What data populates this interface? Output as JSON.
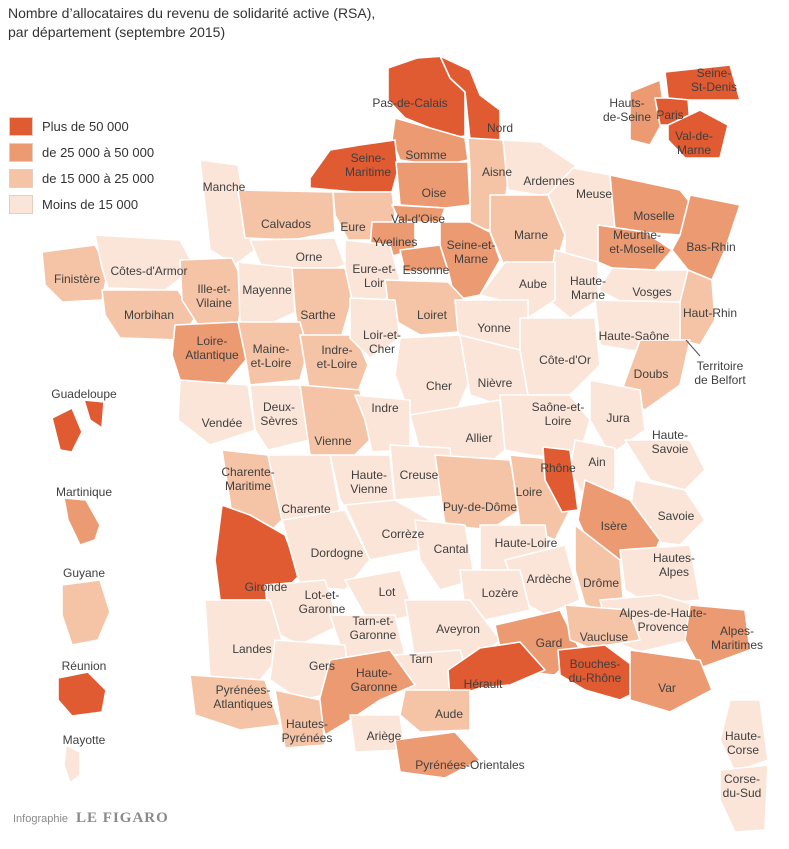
{
  "title": {
    "line1": "Nombre d’allocataires du revenu de solidarité active (RSA),",
    "line2": "par département (septembre 2015)"
  },
  "colors": {
    "over_50000": "#e05a32",
    "from_25000_to_50000": "#ec9a72",
    "from_15000_to_25000": "#f5c4a6",
    "under_15000": "#fbe5d8"
  },
  "legend": [
    {
      "label": "Plus de 50 000",
      "class": "over_50000"
    },
    {
      "label": "de 25 000 à 50 000",
      "class": "from_25000_to_50000"
    },
    {
      "label": "de 15 000 à 25 000",
      "class": "from_15000_to_25000"
    },
    {
      "label": "Moins de 15 000",
      "class": "under_15000"
    }
  ],
  "overseas": [
    {
      "name": "Guadeloupe",
      "class": "over_50000"
    },
    {
      "name": "Martinique",
      "class": "from_25000_to_50000"
    },
    {
      "name": "Guyane",
      "class": "from_15000_to_25000"
    },
    {
      "name": "Réunion",
      "class": "over_50000"
    },
    {
      "name": "Mayotte",
      "class": "under_15000"
    }
  ],
  "departments": [
    {
      "name": "Pas-de-Calais",
      "class": "over_50000"
    },
    {
      "name": "Nord",
      "class": "over_50000"
    },
    {
      "name": "Seine-Maritime",
      "class": "over_50000"
    },
    {
      "name": "Somme",
      "class": "from_25000_to_50000"
    },
    {
      "name": "Aisne",
      "class": "from_15000_to_25000"
    },
    {
      "name": "Ardennes",
      "class": "under_15000"
    },
    {
      "name": "Oise",
      "class": "from_25000_to_50000"
    },
    {
      "name": "Val-d'Oise",
      "class": "from_25000_to_50000"
    },
    {
      "name": "Yvelines",
      "class": "from_25000_to_50000"
    },
    {
      "name": "Essonne",
      "class": "from_25000_to_50000"
    },
    {
      "name": "Seine-et-Marne",
      "class": "from_25000_to_50000"
    },
    {
      "name": "Manche",
      "class": "under_15000"
    },
    {
      "name": "Calvados",
      "class": "from_15000_to_25000"
    },
    {
      "name": "Eure",
      "class": "from_15000_to_25000"
    },
    {
      "name": "Orne",
      "class": "under_15000"
    },
    {
      "name": "Eure-et-Loir",
      "class": "under_15000"
    },
    {
      "name": "Marne",
      "class": "from_15000_to_25000"
    },
    {
      "name": "Meuse",
      "class": "under_15000"
    },
    {
      "name": "Moselle",
      "class": "from_25000_to_50000"
    },
    {
      "name": "Meurthe-et-Moselle",
      "class": "from_25000_to_50000"
    },
    {
      "name": "Bas-Rhin",
      "class": "from_25000_to_50000"
    },
    {
      "name": "Haut-Rhin",
      "class": "from_15000_to_25000"
    },
    {
      "name": "Vosges",
      "class": "under_15000"
    },
    {
      "name": "Haute-Marne",
      "class": "under_15000"
    },
    {
      "name": "Aube",
      "class": "under_15000"
    },
    {
      "name": "Finistère",
      "class": "from_15000_to_25000"
    },
    {
      "name": "Côtes-d'Armor",
      "class": "under_15000"
    },
    {
      "name": "Morbihan",
      "class": "from_15000_to_25000"
    },
    {
      "name": "Ille-et-Vilaine",
      "class": "from_15000_to_25000"
    },
    {
      "name": "Mayenne",
      "class": "under_15000"
    },
    {
      "name": "Sarthe",
      "class": "from_15000_to_25000"
    },
    {
      "name": "Loiret",
      "class": "from_15000_to_25000"
    },
    {
      "name": "Yonne",
      "class": "under_15000"
    },
    {
      "name": "Haute-Saône",
      "class": "under_15000"
    },
    {
      "name": "Loire-Atlantique",
      "class": "from_25000_to_50000"
    },
    {
      "name": "Maine-et-Loire",
      "class": "from_15000_to_25000"
    },
    {
      "name": "Indre-et-Loire",
      "class": "from_15000_to_25000"
    },
    {
      "name": "Loir-et-Cher",
      "class": "under_15000"
    },
    {
      "name": "Cher",
      "class": "under_15000"
    },
    {
      "name": "Nièvre",
      "class": "under_15000"
    },
    {
      "name": "Côte-d'Or",
      "class": "under_15000"
    },
    {
      "name": "Doubs",
      "class": "from_15000_to_25000"
    },
    {
      "name": "Territoire de Belfort",
      "class": "under_15000"
    },
    {
      "name": "Vendée",
      "class": "under_15000"
    },
    {
      "name": "Deux-Sèvres",
      "class": "under_15000"
    },
    {
      "name": "Vienne",
      "class": "from_15000_to_25000"
    },
    {
      "name": "Indre",
      "class": "under_15000"
    },
    {
      "name": "Allier",
      "class": "under_15000"
    },
    {
      "name": "Saône-et-Loire",
      "class": "under_15000"
    },
    {
      "name": "Jura",
      "class": "under_15000"
    },
    {
      "name": "Ain",
      "class": "under_15000"
    },
    {
      "name": "Haute-Savoie",
      "class": "under_15000"
    },
    {
      "name": "Charente-Maritime",
      "class": "from_15000_to_25000"
    },
    {
      "name": "Charente",
      "class": "under_15000"
    },
    {
      "name": "Haute-Vienne",
      "class": "under_15000"
    },
    {
      "name": "Creuse",
      "class": "under_15000"
    },
    {
      "name": "Puy-de-Dôme",
      "class": "from_15000_to_25000"
    },
    {
      "name": "Loire",
      "class": "from_15000_to_25000"
    },
    {
      "name": "Rhône",
      "class": "over_50000"
    },
    {
      "name": "Isère",
      "class": "from_25000_to_50000"
    },
    {
      "name": "Savoie",
      "class": "under_15000"
    },
    {
      "name": "Gironde",
      "class": "over_50000"
    },
    {
      "name": "Dordogne",
      "class": "under_15000"
    },
    {
      "name": "Corrèze",
      "class": "under_15000"
    },
    {
      "name": "Cantal",
      "class": "under_15000"
    },
    {
      "name": "Haute-Loire",
      "class": "under_15000"
    },
    {
      "name": "Drôme",
      "class": "from_15000_to_25000"
    },
    {
      "name": "Hautes-Alpes",
      "class": "under_15000"
    },
    {
      "name": "Ardèche",
      "class": "under_15000"
    },
    {
      "name": "Lot-et-Garonne",
      "class": "under_15000"
    },
    {
      "name": "Lot",
      "class": "under_15000"
    },
    {
      "name": "Lozère",
      "class": "under_15000"
    },
    {
      "name": "Alpes-de-Haute-Provence",
      "class": "under_15000"
    },
    {
      "name": "Landes",
      "class": "under_15000"
    },
    {
      "name": "Tarn-et-Garonne",
      "class": "under_15000"
    },
    {
      "name": "Aveyron",
      "class": "under_15000"
    },
    {
      "name": "Gard",
      "class": "from_25000_to_50000"
    },
    {
      "name": "Vaucluse",
      "class": "from_15000_to_25000"
    },
    {
      "name": "Alpes-Maritimes",
      "class": "from_25000_to_50000"
    },
    {
      "name": "Gers",
      "class": "under_15000"
    },
    {
      "name": "Tarn",
      "class": "under_15000"
    },
    {
      "name": "Hérault",
      "class": "over_50000"
    },
    {
      "name": "Bouches-du-Rhône",
      "class": "over_50000"
    },
    {
      "name": "Var",
      "class": "from_25000_to_50000"
    },
    {
      "name": "Pyrénées-Atlantiques",
      "class": "from_15000_to_25000"
    },
    {
      "name": "Haute-Garonne",
      "class": "from_25000_to_50000"
    },
    {
      "name": "Aude",
      "class": "from_15000_to_25000"
    },
    {
      "name": "Hautes-Pyrénées",
      "class": "from_15000_to_25000"
    },
    {
      "name": "Ariège",
      "class": "under_15000"
    },
    {
      "name": "Pyrénées-Orientales",
      "class": "from_25000_to_50000"
    },
    {
      "name": "Haute-Corse",
      "class": "under_15000"
    },
    {
      "name": "Corse-du-Sud",
      "class": "under_15000"
    }
  ],
  "idf_inset": [
    {
      "name": "Hauts-de-Seine",
      "class": "from_25000_to_50000"
    },
    {
      "name": "Paris",
      "class": "over_50000"
    },
    {
      "name": "Seine-St-Denis",
      "class": "over_50000"
    },
    {
      "name": "Val-de-Marne",
      "class": "over_50000"
    }
  ],
  "map_labels": {
    "Pas-de-Calais": "Pas-de-Calais",
    "Nord": "Nord",
    "Seine-Maritime": [
      "Seine-",
      "Maritime"
    ],
    "Somme": "Somme",
    "Aisne": "Aisne",
    "Ardennes": "Ardennes",
    "Oise": "Oise",
    "Val-d'Oise": "Val-d'Oise",
    "Yvelines": "Yvelines",
    "Essonne": "Essonne",
    "Seine-et-Marne": [
      "Seine-et-",
      "Marne"
    ],
    "Manche": "Manche",
    "Calvados": "Calvados",
    "Eure": "Eure",
    "Orne": "Orne",
    "Eure-et-Loir": [
      "Eure-et-",
      "Loir"
    ],
    "Marne": "Marne",
    "Meuse": "Meuse",
    "Moselle": "Moselle",
    "Meurthe-et-Moselle": [
      "Meurthe-",
      "et-Moselle"
    ],
    "Bas-Rhin": "Bas-Rhin",
    "Haut-Rhin": "Haut-Rhin",
    "Vosges": "Vosges",
    "Haute-Marne": [
      "Haute-",
      "Marne"
    ],
    "Aube": "Aube",
    "Finistère": "Finistère",
    "Côtes-d'Armor": "Côtes-d'Armor",
    "Morbihan": "Morbihan",
    "Ille-et-Vilaine": [
      "Ille-et-",
      "Vilaine"
    ],
    "Mayenne": "Mayenne",
    "Sarthe": "Sarthe",
    "Loiret": "Loiret",
    "Yonne": "Yonne",
    "Haute-Saône": "Haute-Saône",
    "Loire-Atlantique": [
      "Loire-",
      "Atlantique"
    ],
    "Maine-et-Loire": [
      "Maine-",
      "et-Loire"
    ],
    "Indre-et-Loire": [
      "Indre-",
      "et-Loire"
    ],
    "Loir-et-Cher": [
      "Loir-et-",
      "Cher"
    ],
    "Cher": "Cher",
    "Nièvre": "Nièvre",
    "Côte-d'Or": "Côte-d'Or",
    "Doubs": "Doubs",
    "Territoire de Belfort": [
      "Territoire",
      "de Belfort"
    ],
    "Vendée": "Vendée",
    "Deux-Sèvres": [
      "Deux-",
      "Sèvres"
    ],
    "Vienne": "Vienne",
    "Indre": "Indre",
    "Allier": "Allier",
    "Saône-et-Loire": [
      "Saône-et-",
      "Loire"
    ],
    "Jura": "Jura",
    "Ain": "Ain",
    "Haute-Savoie": [
      "Haute-",
      "Savoie"
    ],
    "Charente-Maritime": [
      "Charente-",
      "Maritime"
    ],
    "Charente": "Charente",
    "Haute-Vienne": [
      "Haute-",
      "Vienne"
    ],
    "Creuse": "Creuse",
    "Puy-de-Dôme": "Puy-de-Dôme",
    "Loire": "Loire",
    "Rhône": "Rhône",
    "Isère": "Isère",
    "Savoie": "Savoie",
    "Gironde": "Gironde",
    "Dordogne": "Dordogne",
    "Corrèze": "Corrèze",
    "Cantal": "Cantal",
    "Haute-Loire": "Haute-Loire",
    "Drôme": "Drôme",
    "Hautes-Alpes": [
      "Hautes-",
      "Alpes"
    ],
    "Ardèche": "Ardèche",
    "Lot-et-Garonne": [
      "Lot-et-",
      "Garonne"
    ],
    "Lot": "Lot",
    "Lozère": "Lozère",
    "Alpes-de-Haute-Provence": [
      "Alpes-de-Haute-",
      "Provence"
    ],
    "Landes": "Landes",
    "Tarn-et-Garonne": [
      "Tarn-et-",
      "Garonne"
    ],
    "Aveyron": "Aveyron",
    "Gard": "Gard",
    "Vaucluse": "Vaucluse",
    "Alpes-Maritimes": [
      "Alpes-",
      "Maritimes"
    ],
    "Gers": "Gers",
    "Tarn": "Tarn",
    "Hérault": "Hérault",
    "Bouches-du-Rhône": [
      "Bouches-",
      "du-Rhône"
    ],
    "Var": "Var",
    "Pyrénées-Atlantiques": [
      "Pyrénées-",
      "Atlantiques"
    ],
    "Haute-Garonne": [
      "Haute-",
      "Garonne"
    ],
    "Aude": "Aude",
    "Hautes-Pyrénées": [
      "Hautes-",
      "Pyrénées"
    ],
    "Ariège": "Ariège",
    "Pyrénées-Orientales": "Pyrénées-Orientales",
    "Haute-Corse": [
      "Haute-",
      "Corse"
    ],
    "Corse-du-Sud": [
      "Corse-",
      "du-Sud"
    ],
    "Hauts-de-Seine": [
      "Hauts-",
      "de-Seine"
    ],
    "Paris": "Paris",
    "Seine-St-Denis": [
      "Seine-",
      "St-Denis"
    ],
    "Val-de-Marne": [
      "Val-de-",
      "Marne"
    ]
  },
  "credit": {
    "prefix": "Infographie",
    "brand": "LE FIGARO"
  }
}
